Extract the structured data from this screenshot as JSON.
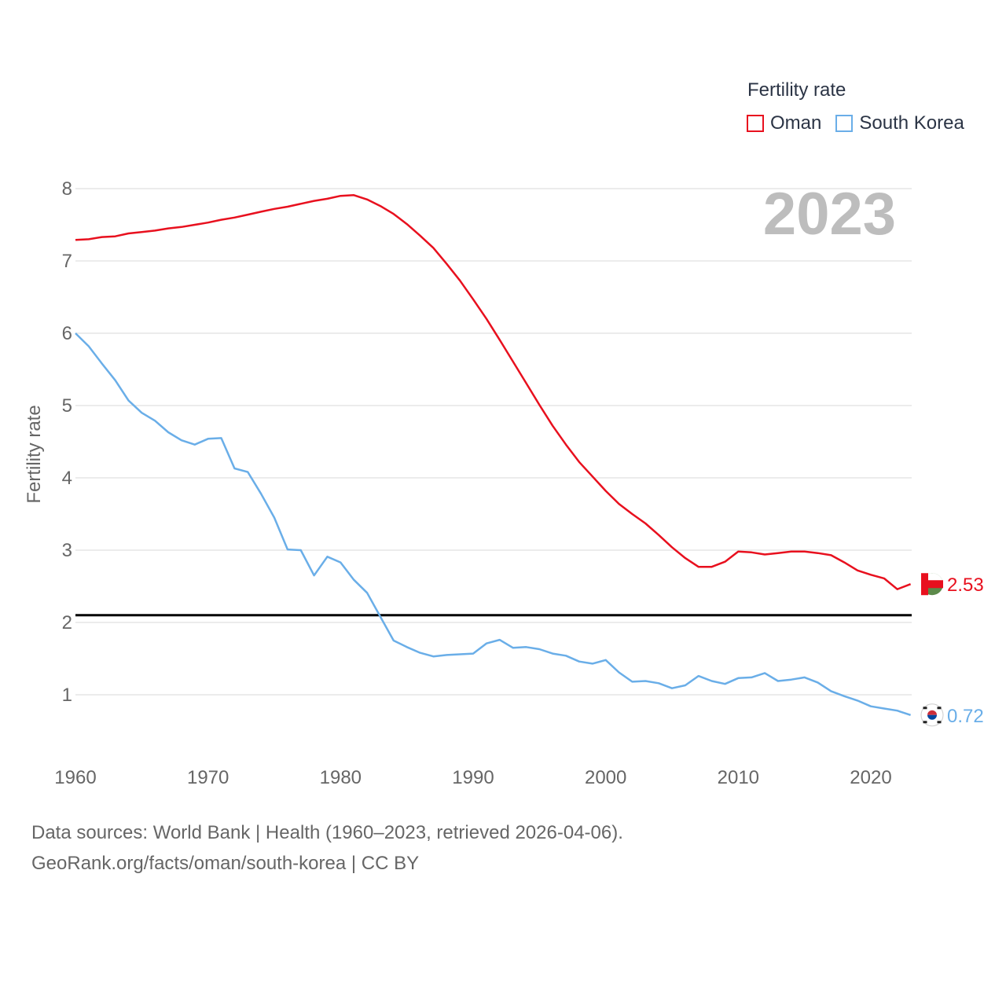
{
  "legend": {
    "title": "Fertility rate",
    "series": [
      {
        "name": "Oman",
        "color": "#e8101e"
      },
      {
        "name": "South Korea",
        "color": "#6aaee8"
      }
    ]
  },
  "footer": {
    "line1": "Data sources: World Bank | Health (1960–2023, retrieved 2026-04-06).",
    "line2": "GeoRank.org/facts/oman/south-korea | CC BY"
  },
  "chart_data": {
    "type": "line",
    "title": "Fertility rate",
    "year_label": "2023",
    "xlabel": "",
    "ylabel": "Fertility rate",
    "xlim": [
      1960,
      2023
    ],
    "ylim": [
      0.5,
      8.2
    ],
    "x_ticks": [
      1960,
      1970,
      1980,
      1990,
      2000,
      2010,
      2020
    ],
    "y_ticks": [
      1,
      2,
      3,
      4,
      5,
      6,
      7,
      8
    ],
    "reference_line": 2.1,
    "x": [
      1960,
      1961,
      1962,
      1963,
      1964,
      1965,
      1966,
      1967,
      1968,
      1969,
      1970,
      1971,
      1972,
      1973,
      1974,
      1975,
      1976,
      1977,
      1978,
      1979,
      1980,
      1981,
      1982,
      1983,
      1984,
      1985,
      1986,
      1987,
      1988,
      1989,
      1990,
      1991,
      1992,
      1993,
      1994,
      1995,
      1996,
      1997,
      1998,
      1999,
      2000,
      2001,
      2002,
      2003,
      2004,
      2005,
      2006,
      2007,
      2008,
      2009,
      2010,
      2011,
      2012,
      2013,
      2014,
      2015,
      2016,
      2017,
      2018,
      2019,
      2020,
      2021,
      2022,
      2023
    ],
    "series": [
      {
        "name": "Oman",
        "color": "#e8101e",
        "end_label": "2.53",
        "values": [
          7.29,
          7.3,
          7.33,
          7.34,
          7.38,
          7.4,
          7.42,
          7.45,
          7.47,
          7.5,
          7.53,
          7.57,
          7.6,
          7.64,
          7.68,
          7.72,
          7.75,
          7.79,
          7.83,
          7.86,
          7.9,
          7.91,
          7.85,
          7.76,
          7.65,
          7.51,
          7.35,
          7.18,
          6.96,
          6.73,
          6.47,
          6.2,
          5.91,
          5.61,
          5.31,
          5.01,
          4.72,
          4.46,
          4.22,
          4.02,
          3.82,
          3.64,
          3.5,
          3.37,
          3.21,
          3.04,
          2.89,
          2.77,
          2.77,
          2.84,
          2.98,
          2.97,
          2.94,
          2.96,
          2.98,
          2.98,
          2.96,
          2.93,
          2.83,
          2.72,
          2.66,
          2.61,
          2.46,
          2.53
        ]
      },
      {
        "name": "South Korea",
        "color": "#6aaee8",
        "end_label": "0.72",
        "values": [
          6.0,
          5.82,
          5.58,
          5.35,
          5.07,
          4.9,
          4.79,
          4.63,
          4.52,
          4.46,
          4.54,
          4.55,
          4.13,
          4.08,
          3.78,
          3.45,
          3.01,
          3.0,
          2.65,
          2.91,
          2.83,
          2.59,
          2.41,
          2.08,
          1.75,
          1.66,
          1.58,
          1.53,
          1.55,
          1.56,
          1.57,
          1.71,
          1.76,
          1.65,
          1.66,
          1.63,
          1.57,
          1.54,
          1.46,
          1.43,
          1.48,
          1.31,
          1.18,
          1.19,
          1.16,
          1.09,
          1.13,
          1.26,
          1.19,
          1.15,
          1.23,
          1.24,
          1.3,
          1.19,
          1.21,
          1.24,
          1.17,
          1.05,
          0.98,
          0.92,
          0.84,
          0.81,
          0.78,
          0.72
        ]
      }
    ]
  }
}
